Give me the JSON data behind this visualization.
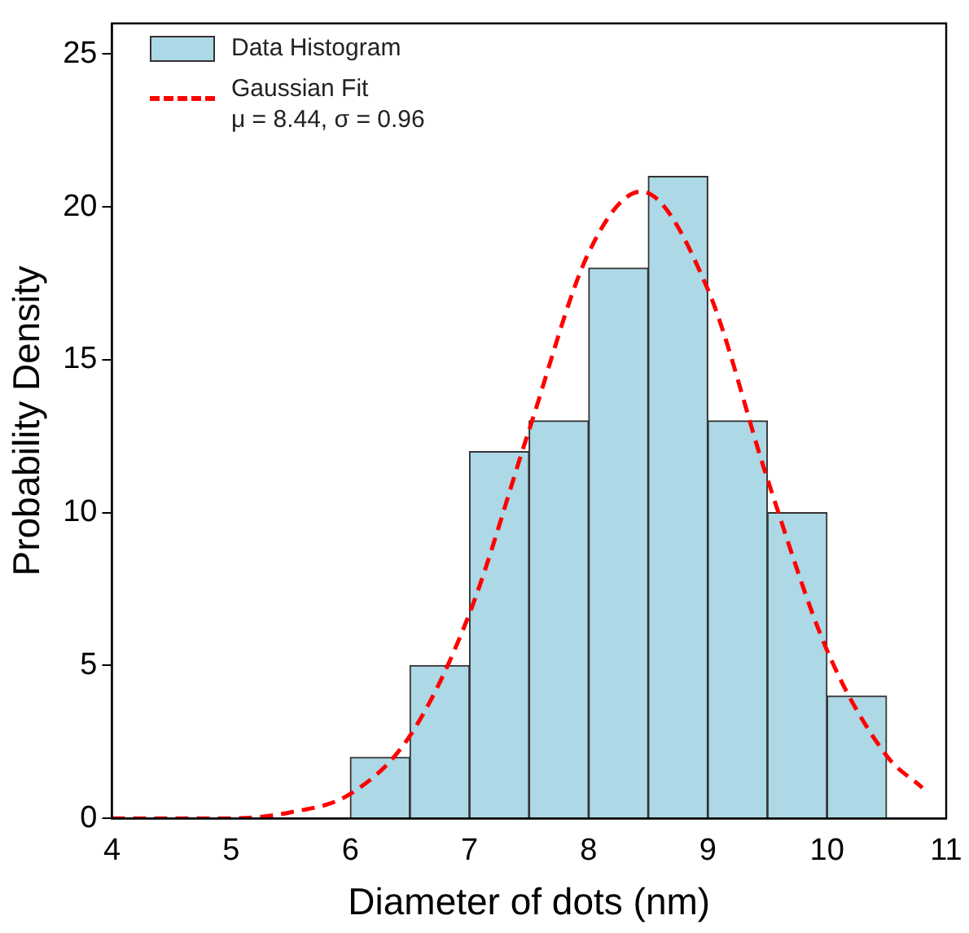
{
  "chart_data": {
    "type": "histogram",
    "xlabel": "Diameter of dots (nm)",
    "ylabel": "Probability Density",
    "series": [
      {
        "name": "Data Histogram",
        "color": "#add8e6",
        "bins": [
          6,
          6.5,
          7,
          7.5,
          8,
          8.5,
          9,
          9.5,
          10,
          10.5
        ],
        "values": [
          2,
          5,
          12,
          13,
          18,
          21,
          13,
          10,
          4
        ]
      },
      {
        "name": "Gaussian Fit\nμ = 8.44, σ = 0.96",
        "type": "line",
        "color": "#ff0000",
        "line_style": "dashed",
        "x": [
          4,
          5,
          5.5,
          6,
          6.5,
          7,
          7.5,
          8,
          8.44,
          9,
          9.5,
          10,
          10.5,
          10.8
        ],
        "values": [
          0,
          0,
          0.2,
          0.8,
          2.7,
          6.7,
          12.7,
          18.5,
          20.5,
          17.3,
          11.1,
          5.5,
          2.05,
          1.0
        ]
      }
    ],
    "xlim": [
      4,
      11
    ],
    "xticks": [
      4,
      5,
      6,
      7,
      8,
      9,
      10,
      11
    ],
    "ylim": [
      0,
      26
    ],
    "yticks": [
      0,
      5,
      10,
      15,
      20,
      25
    ],
    "legend": "top left",
    "grid": false
  }
}
